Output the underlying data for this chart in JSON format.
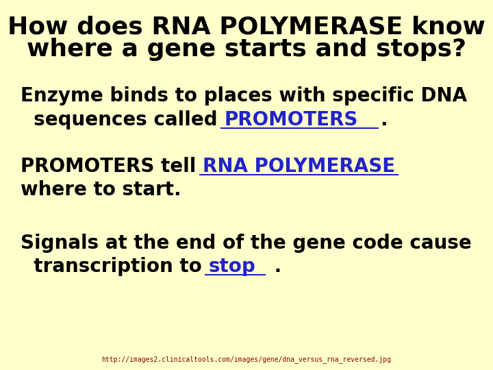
{
  "bg_color": "#FFFFCC",
  "title_line1": "How does RNA POLYMERASE know",
  "title_line2": "where a gene starts and stops?",
  "title_color": "#000000",
  "title_fontsize": 26,
  "body_color": "#000000",
  "fill_color": "#2222CC",
  "body_fontsize": 20,
  "line1_text1": "Enzyme binds to places with specific DNA",
  "line2_prefix": "  sequences called ",
  "line2_fill": "PROMOTERS",
  "line2_suffix": ".",
  "line3_prefix": "PROMOTERS tell ",
  "line3_fill": "RNA POLYMERASE",
  "line4_text": "where to start.",
  "line5_text": "Signals at the end of the gene code cause",
  "line6_prefix": "  transcription to ",
  "line6_fill": "stop",
  "line6_suffix": " .",
  "url_text": "http://images2.clinicaltools.com/images/gene/dna_versus_rna_reversed.jpg",
  "url_color": "#880000",
  "url_fontsize": 7,
  "font_family": "Comic Sans MS"
}
